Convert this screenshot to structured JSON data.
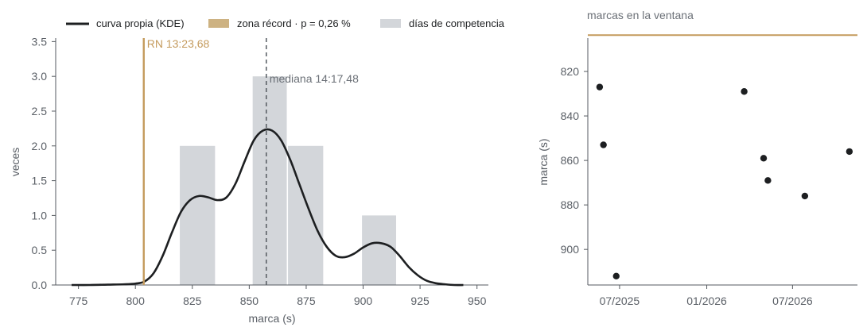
{
  "colors": {
    "kde": "#1d1f21",
    "record": "#c49a5c",
    "record_legend": "#cdb282",
    "bars": "#d3d6da",
    "median": "#555a60",
    "points": "#1d1f21",
    "annot_median": "#6b7077"
  },
  "legend": {
    "kde": "curva propia (KDE)",
    "record": "zona récord · p = 0,26 %",
    "bars": "días de competencia"
  },
  "chart_data": [
    {
      "type": "bar",
      "xlabel": "marca (s)",
      "ylabel": "veces",
      "xlim": [
        765,
        955
      ],
      "ylim": [
        0,
        3.55
      ],
      "xticks": [
        775,
        800,
        825,
        850,
        875,
        900,
        925,
        950
      ],
      "yticks": [
        0.0,
        0.5,
        1.0,
        1.5,
        2.0,
        2.5,
        3.0,
        3.5
      ],
      "ytick_labels": [
        "0.0",
        "0.5",
        "1.0",
        "1.5",
        "2.0",
        "2.5",
        "3.0",
        "3.5"
      ],
      "histogram": {
        "name": "días de competencia",
        "bins": [
          {
            "x0": 819.5,
            "x1": 835.5,
            "count": 2
          },
          {
            "x0": 851.5,
            "x1": 867.0,
            "count": 3
          },
          {
            "x0": 867.0,
            "x1": 883.0,
            "count": 2
          },
          {
            "x0": 899.5,
            "x1": 915.0,
            "count": 1
          }
        ]
      },
      "kde": {
        "name": "curva propia (KDE)",
        "x": [
          772,
          780,
          788,
          795,
          800,
          804,
          808,
          812,
          816,
          820,
          824,
          828,
          832,
          836,
          840,
          844,
          848,
          852,
          856,
          860,
          864,
          868,
          872,
          876,
          880,
          884,
          888,
          892,
          896,
          900,
          904,
          908,
          912,
          916,
          920,
          924,
          928,
          932,
          936,
          940,
          944
        ],
        "y": [
          0.0,
          0.0,
          0.005,
          0.01,
          0.02,
          0.05,
          0.17,
          0.42,
          0.75,
          1.05,
          1.22,
          1.28,
          1.26,
          1.22,
          1.26,
          1.46,
          1.78,
          2.08,
          2.22,
          2.22,
          2.08,
          1.8,
          1.45,
          1.1,
          0.78,
          0.55,
          0.42,
          0.4,
          0.45,
          0.54,
          0.6,
          0.6,
          0.55,
          0.42,
          0.26,
          0.14,
          0.06,
          0.025,
          0.01,
          0.0,
          0.0
        ]
      },
      "record_line": {
        "name": "zona récord · p = 0,26 %",
        "x": 803.68,
        "label": "RN 13:23,68"
      },
      "median_line": {
        "x": 857.48,
        "label": "mediana 14:17,48"
      },
      "legend_position": "top"
    },
    {
      "type": "scatter",
      "title": "marcas en la ventana",
      "ylabel": "marca (s)",
      "y_inverted": true,
      "ylim": [
        805,
        916
      ],
      "xlim": [
        "2025-04-25",
        "2026-11-15"
      ],
      "yticks": [
        800,
        820,
        840,
        860,
        880,
        900
      ],
      "xticks": [
        "2025-07-01",
        "2026-01-01",
        "2026-07-01"
      ],
      "xtick_labels": [
        "07/2025",
        "01/2026",
        "07/2026"
      ],
      "record_line_y": 803.68,
      "points": [
        {
          "x": "2025-05-20",
          "y": 827
        },
        {
          "x": "2025-05-28",
          "y": 853
        },
        {
          "x": "2025-06-24",
          "y": 912
        },
        {
          "x": "2026-03-21",
          "y": 829
        },
        {
          "x": "2026-05-01",
          "y": 859
        },
        {
          "x": "2026-05-10",
          "y": 869
        },
        {
          "x": "2026-07-27",
          "y": 876
        },
        {
          "x": "2026-10-29",
          "y": 856
        }
      ]
    }
  ]
}
